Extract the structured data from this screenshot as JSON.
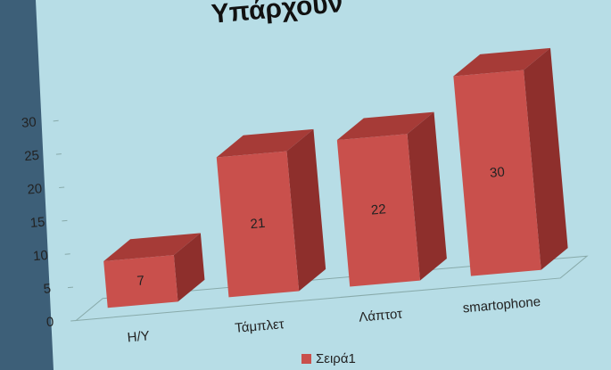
{
  "chart_data": {
    "type": "bar3d",
    "title": "Υπάρχουν",
    "categories": [
      "Η/Υ",
      "Τάμπλετ",
      "Λάπτοτ",
      "smartophone"
    ],
    "series": [
      {
        "name": "Σειρά1",
        "color": "#c9504c",
        "values": [
          7,
          21,
          22,
          30
        ]
      }
    ],
    "ylim": [
      0,
      30
    ],
    "yticks": [
      0,
      5,
      10,
      15,
      20,
      25,
      30
    ],
    "legend": "bottom"
  }
}
